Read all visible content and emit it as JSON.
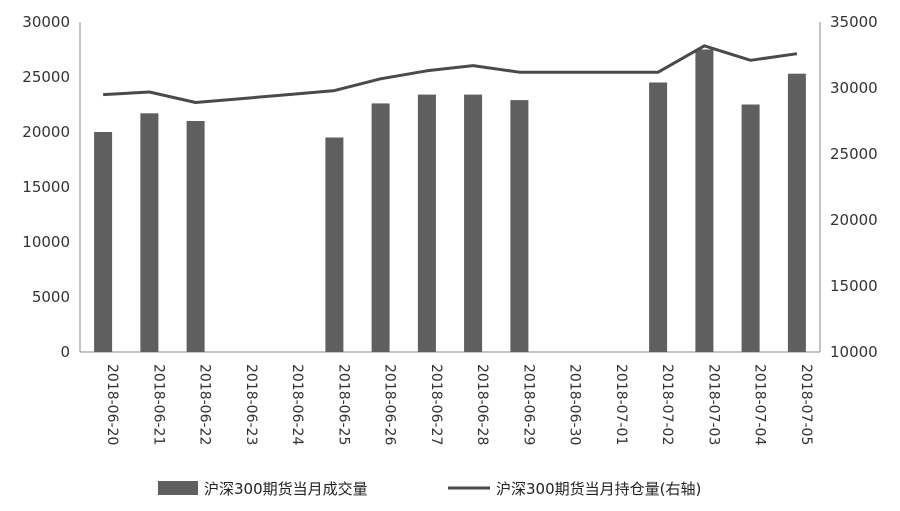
{
  "chart_data": {
    "type": "bar",
    "categories": [
      "2018-06-20",
      "2018-06-21",
      "2018-06-22",
      "2018-06-23",
      "2018-06-24",
      "2018-06-25",
      "2018-06-26",
      "2018-06-27",
      "2018-06-28",
      "2018-06-29",
      "2018-06-30",
      "2018-07-01",
      "2018-07-02",
      "2018-07-03",
      "2018-07-04",
      "2018-07-05"
    ],
    "series": [
      {
        "name": "沪深300期货当月成交量",
        "type": "bar",
        "axis": "left",
        "color": "#5f5f5f",
        "values": [
          20000,
          21700,
          21000,
          null,
          null,
          19500,
          22600,
          23400,
          23400,
          22900,
          null,
          null,
          24500,
          27500,
          22500,
          25300
        ]
      },
      {
        "name": "沪深300期货当月持仓量(右轴)",
        "type": "line",
        "axis": "right",
        "color": "#4a4a4a",
        "values": [
          29500,
          29700,
          28900,
          29200,
          29500,
          29800,
          30700,
          31300,
          31700,
          31200,
          31200,
          31200,
          31200,
          33200,
          32100,
          32600
        ]
      }
    ],
    "y_left": {
      "ticks": [
        "0",
        "5000",
        "10000",
        "15000",
        "20000",
        "25000",
        "30000"
      ],
      "range": [
        0,
        30000
      ]
    },
    "y_right": {
      "ticks": [
        "10000",
        "15000",
        "20000",
        "25000",
        "30000",
        "35000"
      ],
      "range": [
        10000,
        35000
      ]
    },
    "grid": false,
    "legend_position": "bottom"
  }
}
